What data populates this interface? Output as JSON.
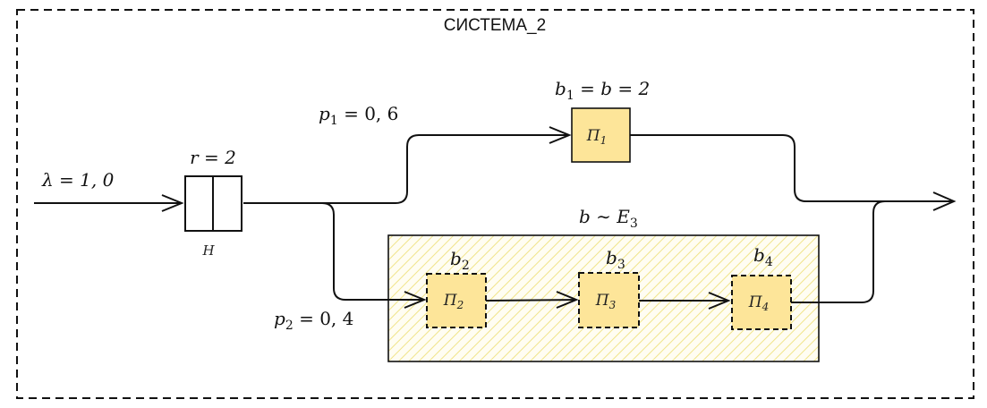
{
  "colors": {
    "server_fill": "#fde599",
    "erlang_hatch": "#f0e48a",
    "line": "#111111"
  },
  "system": {
    "title": "СИСТЕМА_2"
  },
  "input": {
    "lambda_label": "λ = 1, 0"
  },
  "queue": {
    "r_label": "r = 2",
    "name": "H"
  },
  "branch_top": {
    "prob_p": "p",
    "prob_sub": "1",
    "prob_rest": " = 0, 6"
  },
  "branch_bottom": {
    "prob_p": "p",
    "prob_sub": "2",
    "prob_rest": " = 0, 4"
  },
  "server1": {
    "name": "П",
    "sub": "1",
    "label_b": "b",
    "label_sub": "1",
    "label_rest": " = b = 2"
  },
  "erlang": {
    "label_b": "b",
    "label_tilde": " ∼ ",
    "label_E": "E",
    "label_sub": "3"
  },
  "phases": [
    {
      "name": "П",
      "sub": "2",
      "label_b": "b",
      "label_sub": "2"
    },
    {
      "name": "П",
      "sub": "3",
      "label_b": "b",
      "label_sub": "3"
    },
    {
      "name": "П",
      "sub": "4",
      "label_b": "b",
      "label_sub": "4"
    }
  ]
}
